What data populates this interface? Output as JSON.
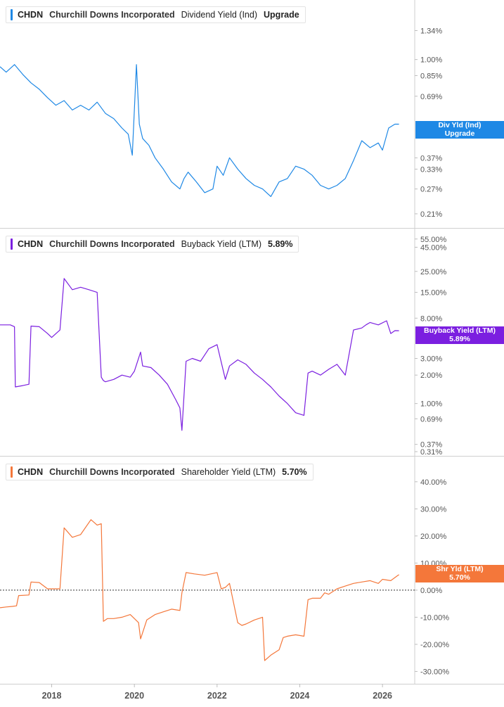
{
  "chart_data": [
    {
      "type": "line",
      "legend": {
        "ticker": "CHDN",
        "company": "Churchill Downs Incorporated",
        "metric": "Dividend Yield (Ind)",
        "value": "Upgrade"
      },
      "badge": {
        "line1": "Div Yld (Ind)",
        "line2": "Upgrade"
      },
      "color": "#1e88e5",
      "yscale": "log",
      "ylim": [
        0.19,
        1.75
      ],
      "yticks": [
        {
          "v": 1.34,
          "l": "1.34%"
        },
        {
          "v": 1.0,
          "l": "1.00%"
        },
        {
          "v": 0.85,
          "l": "0.85%"
        },
        {
          "v": 0.69,
          "l": "0.69%"
        },
        {
          "v": 0.37,
          "l": "0.37%"
        },
        {
          "v": 0.33,
          "l": "0.33%"
        },
        {
          "v": 0.27,
          "l": "0.27%"
        },
        {
          "v": 0.21,
          "l": "0.21%"
        }
      ],
      "x": [
        2016.75,
        2016.9,
        2017.1,
        2017.3,
        2017.5,
        2017.7,
        2017.9,
        2018.1,
        2018.3,
        2018.5,
        2018.7,
        2018.9,
        2019.1,
        2019.3,
        2019.5,
        2019.7,
        2019.85,
        2019.95,
        2020.05,
        2020.12,
        2020.2,
        2020.35,
        2020.5,
        2020.7,
        2020.9,
        2021.1,
        2021.2,
        2021.3,
        2021.5,
        2021.7,
        2021.9,
        2022.0,
        2022.15,
        2022.3,
        2022.5,
        2022.7,
        2022.9,
        2023.1,
        2023.3,
        2023.5,
        2023.7,
        2023.9,
        2024.1,
        2024.3,
        2024.5,
        2024.7,
        2024.9,
        2025.1,
        2025.3,
        2025.5,
        2025.7,
        2025.9,
        2026.0,
        2026.15,
        2026.3,
        2026.4
      ],
      "values": [
        0.93,
        0.88,
        0.95,
        0.86,
        0.79,
        0.74,
        0.68,
        0.63,
        0.66,
        0.6,
        0.63,
        0.6,
        0.65,
        0.58,
        0.55,
        0.5,
        0.47,
        0.38,
        0.95,
        0.52,
        0.45,
        0.42,
        0.37,
        0.33,
        0.29,
        0.27,
        0.3,
        0.32,
        0.29,
        0.26,
        0.27,
        0.34,
        0.31,
        0.37,
        0.33,
        0.3,
        0.28,
        0.27,
        0.25,
        0.29,
        0.3,
        0.34,
        0.33,
        0.31,
        0.28,
        0.27,
        0.28,
        0.3,
        0.36,
        0.44,
        0.41,
        0.43,
        0.4,
        0.5,
        0.52,
        0.52
      ]
    },
    {
      "type": "line",
      "legend": {
        "ticker": "CHDN",
        "company": "Churchill Downs Incorporated",
        "metric": "Buyback Yield (LTM)",
        "value": "5.89%"
      },
      "badge": {
        "line1": "Buyback Yield (LTM)",
        "line2": "5.89%"
      },
      "color": "#7b1fe0",
      "yscale": "log",
      "ylim": [
        0.31,
        65
      ],
      "yticks": [
        {
          "v": 55,
          "l": "55.00%"
        },
        {
          "v": 45,
          "l": "45.00%"
        },
        {
          "v": 25,
          "l": "25.00%"
        },
        {
          "v": 15,
          "l": "15.00%"
        },
        {
          "v": 8,
          "l": "8.00%"
        },
        {
          "v": 3,
          "l": "3.00%"
        },
        {
          "v": 2,
          "l": "2.00%"
        },
        {
          "v": 1,
          "l": "1.00%"
        },
        {
          "v": 0.69,
          "l": "0.69%"
        },
        {
          "v": 0.37,
          "l": "0.37%"
        },
        {
          "v": 0.31,
          "l": "0.31%"
        }
      ],
      "x": [
        2016.75,
        2017.0,
        2017.1,
        2017.12,
        2017.3,
        2017.45,
        2017.5,
        2017.7,
        2017.9,
        2018.0,
        2018.2,
        2018.3,
        2018.5,
        2018.7,
        2018.9,
        2019.1,
        2019.2,
        2019.25,
        2019.3,
        2019.5,
        2019.7,
        2019.9,
        2020.0,
        2020.15,
        2020.2,
        2020.4,
        2020.6,
        2020.8,
        2021.0,
        2021.1,
        2021.15,
        2021.25,
        2021.4,
        2021.6,
        2021.8,
        2022.0,
        2022.2,
        2022.3,
        2022.5,
        2022.7,
        2022.9,
        2023.1,
        2023.3,
        2023.5,
        2023.7,
        2023.9,
        2024.1,
        2024.2,
        2024.3,
        2024.5,
        2024.7,
        2024.9,
        2025.1,
        2025.3,
        2025.5,
        2025.6,
        2025.7,
        2025.9,
        2026.1,
        2026.2,
        2026.3,
        2026.4
      ],
      "values": [
        6.8,
        6.8,
        6.5,
        1.5,
        1.55,
        1.6,
        6.6,
        6.5,
        5.5,
        5.0,
        6.0,
        21,
        16,
        17,
        16,
        15,
        1.9,
        1.75,
        1.7,
        1.8,
        2.0,
        1.9,
        2.2,
        3.5,
        2.5,
        2.4,
        2.0,
        1.6,
        1.1,
        0.9,
        0.52,
        2.8,
        3.0,
        2.8,
        3.8,
        4.2,
        1.8,
        2.5,
        2.9,
        2.6,
        2.1,
        1.8,
        1.5,
        1.2,
        1.0,
        0.8,
        0.75,
        2.1,
        2.2,
        2.0,
        2.3,
        2.6,
        2.0,
        6.0,
        6.3,
        6.8,
        7.2,
        6.8,
        7.5,
        5.5,
        5.9,
        5.89
      ]
    },
    {
      "type": "line",
      "legend": {
        "ticker": "CHDN",
        "company": "Churchill Downs Incorporated",
        "metric": "Shareholder Yield (LTM)",
        "value": "5.70%"
      },
      "badge": {
        "line1": "Shr Yld (LTM)",
        "line2": "5.70%"
      },
      "color": "#f4773a",
      "yscale": "linear",
      "ylim": [
        -33,
        48
      ],
      "zero_line": true,
      "yticks": [
        {
          "v": 40,
          "l": "40.00%"
        },
        {
          "v": 30,
          "l": "30.00%"
        },
        {
          "v": 20,
          "l": "20.00%"
        },
        {
          "v": 10,
          "l": "10.00%"
        },
        {
          "v": 0,
          "l": "0.00%"
        },
        {
          "v": -10,
          "l": "-10.00%"
        },
        {
          "v": -20,
          "l": "-20.00%"
        },
        {
          "v": -30,
          "l": "-30.00%"
        }
      ],
      "x": [
        2016.75,
        2016.9,
        2017.05,
        2017.15,
        2017.2,
        2017.45,
        2017.5,
        2017.7,
        2017.9,
        2018.2,
        2018.3,
        2018.5,
        2018.7,
        2018.95,
        2019.1,
        2019.2,
        2019.25,
        2019.35,
        2019.5,
        2019.7,
        2019.9,
        2020.1,
        2020.15,
        2020.3,
        2020.5,
        2020.7,
        2020.9,
        2021.1,
        2021.15,
        2021.25,
        2021.45,
        2021.7,
        2022.0,
        2022.1,
        2022.2,
        2022.3,
        2022.5,
        2022.6,
        2022.7,
        2022.9,
        2023.1,
        2023.15,
        2023.3,
        2023.5,
        2023.6,
        2023.7,
        2023.9,
        2024.1,
        2024.2,
        2024.3,
        2024.5,
        2024.6,
        2024.7,
        2024.9,
        2025.1,
        2025.3,
        2025.5,
        2025.7,
        2025.9,
        2026.0,
        2026.2,
        2026.35,
        2026.4
      ],
      "values": [
        -6.5,
        -6.2,
        -6.0,
        -5.8,
        -2.0,
        -1.8,
        3.0,
        2.8,
        0.5,
        0.5,
        23,
        19.5,
        20.5,
        26,
        24,
        24.5,
        -11.5,
        -10.5,
        -10.5,
        -10,
        -9,
        -12,
        -18,
        -11,
        -9,
        -8,
        -7,
        -7.5,
        -1,
        6.5,
        6.0,
        5.5,
        6.5,
        0.5,
        1.0,
        2.5,
        -12,
        -13,
        -12.5,
        -11,
        -10,
        -26,
        -24,
        -22,
        -17.5,
        -17,
        -16.5,
        -17,
        -3.5,
        -3.0,
        -3.0,
        -1.0,
        -1.5,
        0.5,
        1.5,
        2.5,
        3.0,
        3.5,
        2.5,
        4.0,
        3.5,
        5.2,
        5.7
      ]
    }
  ],
  "x_axis": {
    "xlim": [
      2016.75,
      2026.78
    ],
    "ticks": [
      "2018",
      "2020",
      "2022",
      "2024",
      "2026"
    ]
  }
}
